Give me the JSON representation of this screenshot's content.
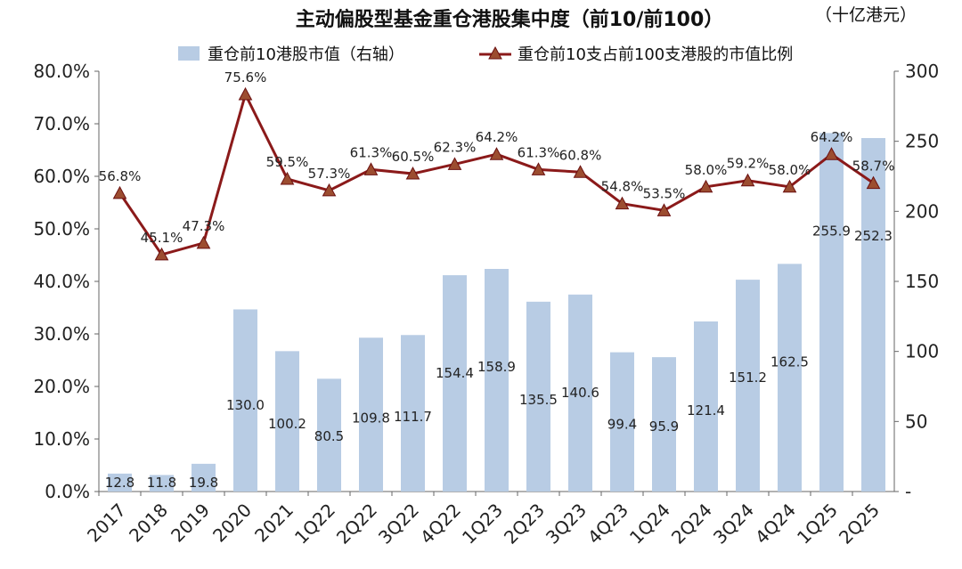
{
  "chart_data": {
    "type": "bar",
    "title": "主动偏股型基金重仓港股集中度（前10/前100）",
    "unit_label": "（十亿港元）",
    "categories": [
      "2017",
      "2018",
      "2019",
      "2020",
      "2021",
      "1Q22",
      "2Q22",
      "3Q22",
      "4Q22",
      "1Q23",
      "2Q23",
      "3Q23",
      "4Q23",
      "1Q24",
      "2Q24",
      "3Q24",
      "4Q24",
      "1Q25",
      "2Q25"
    ],
    "series": [
      {
        "name": "重仓前10港股市值（右轴）",
        "type": "bar",
        "axis": "right",
        "color": "#b8cce4",
        "values": [
          12.8,
          11.8,
          19.8,
          130.0,
          100.2,
          80.5,
          109.8,
          111.7,
          154.4,
          158.9,
          135.5,
          140.6,
          99.4,
          95.9,
          121.4,
          151.2,
          162.5,
          255.9,
          252.3
        ],
        "labels": [
          "12.8",
          "11.8",
          "19.8",
          "130.0",
          "100.2",
          "80.5",
          "109.8",
          "111.7",
          "154.4",
          "158.9",
          "135.5",
          "140.6",
          "99.4",
          "95.9",
          "121.4",
          "151.2",
          "162.5",
          "255.9",
          "252.3"
        ]
      },
      {
        "name": "重仓前10支占前100支港股的市值比例",
        "type": "line",
        "axis": "left",
        "color": "#8b1a1a",
        "marker": "triangle",
        "values": [
          56.8,
          45.1,
          47.3,
          75.6,
          59.5,
          57.3,
          61.3,
          60.5,
          62.3,
          64.2,
          61.3,
          60.8,
          54.8,
          53.5,
          58.0,
          59.2,
          58.0,
          64.2,
          58.7
        ],
        "labels": [
          "56.8%",
          "45.1%",
          "47.3%",
          "75.6%",
          "59.5%",
          "57.3%",
          "61.3%",
          "60.5%",
          "62.3%",
          "64.2%",
          "61.3%",
          "60.8%",
          "54.8%",
          "53.5%",
          "58.0%",
          "59.2%",
          "58.0%",
          "64.2%",
          "58.7%"
        ]
      }
    ],
    "y_left": {
      "min": 0,
      "max": 80,
      "ticks": [
        "0.0%",
        "10.0%",
        "20.0%",
        "30.0%",
        "40.0%",
        "50.0%",
        "60.0%",
        "70.0%",
        "80.0%"
      ]
    },
    "y_right": {
      "min": 0,
      "max": 300,
      "ticks": [
        "-",
        "50",
        "100",
        "150",
        "200",
        "250",
        "300"
      ]
    },
    "grid": false,
    "legend_position": "top"
  }
}
